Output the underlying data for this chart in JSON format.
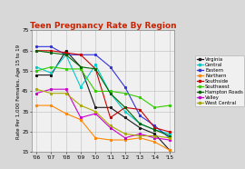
{
  "title": "Teen Pregnancy Rate By Region",
  "ylabel": "Rate Per 1,000 Females, Age 15 to 19",
  "years": [
    "'06",
    "'07",
    "'08",
    "'09",
    "'10",
    "'11",
    "'12",
    "'13",
    "'14",
    "'15"
  ],
  "ylim": [
    15,
    75
  ],
  "yticks": [
    15,
    25,
    35,
    45,
    55,
    65,
    75
  ],
  "series": [
    {
      "label": "Virginia",
      "color": "#1a1a1a",
      "values": [
        53,
        53,
        65,
        57,
        37,
        37,
        32,
        27,
        24,
        16
      ]
    },
    {
      "label": "Central",
      "color": "#00cccc",
      "values": [
        57,
        54,
        63,
        47,
        58,
        44,
        35,
        29,
        26,
        24
      ]
    },
    {
      "label": "Eastern",
      "color": "#3333dd",
      "values": [
        67,
        67,
        63,
        63,
        63,
        57,
        47,
        33,
        28,
        22
      ]
    },
    {
      "label": "Northern",
      "color": "#ff8800",
      "values": [
        38,
        38,
        34,
        31,
        22,
        21,
        21,
        22,
        20,
        16
      ]
    },
    {
      "label": "Southside",
      "color": "#cc0000",
      "values": [
        65,
        65,
        64,
        63,
        56,
        32,
        37,
        36,
        27,
        25
      ]
    },
    {
      "label": "Southwest",
      "color": "#33cc00",
      "values": [
        55,
        57,
        56,
        56,
        45,
        45,
        44,
        42,
        37,
        38
      ]
    },
    {
      "label": "Hampton Roads",
      "color": "#006600",
      "values": [
        65,
        64,
        63,
        57,
        56,
        44,
        37,
        29,
        26,
        23
      ]
    },
    {
      "label": "Valley",
      "color": "#cc00cc",
      "values": [
        44,
        46,
        46,
        32,
        34,
        27,
        22,
        24,
        22,
        21
      ]
    },
    {
      "label": "West Central",
      "color": "#aaaa00",
      "values": [
        46,
        44,
        44,
        38,
        35,
        28,
        24,
        23,
        23,
        22
      ]
    }
  ],
  "background_color": "#d8d8d8",
  "plot_bg_color": "#f0f0f0",
  "title_color": "#cc2200",
  "title_fontsize": 6.5,
  "axis_fontsize": 4.0,
  "legend_fontsize": 3.8,
  "tick_fontsize": 4.2
}
